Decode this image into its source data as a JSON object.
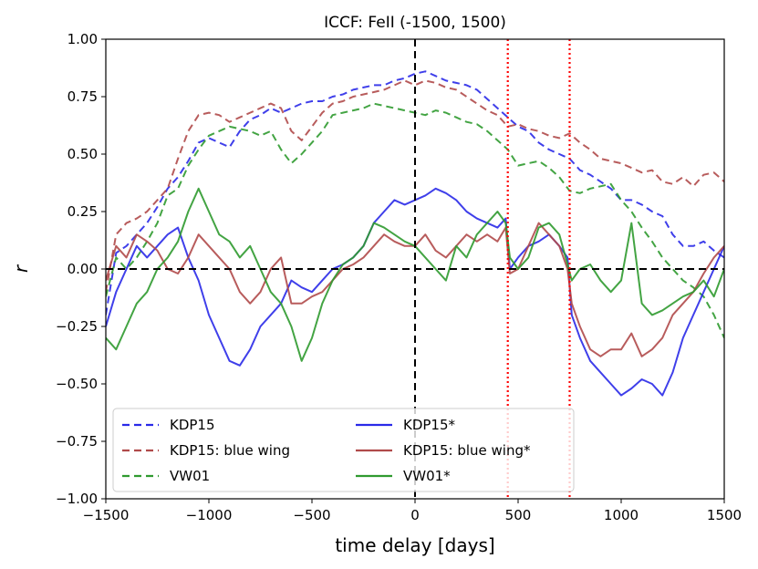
{
  "chart_data": {
    "type": "line",
    "title": "ICCF: FeII (-1500, 1500)",
    "xlabel": "time delay [days]",
    "ylabel": "r",
    "xlim": [
      -1500,
      1500
    ],
    "ylim": [
      -1.0,
      1.0
    ],
    "x_ticks": [
      -1500,
      -1000,
      -500,
      0,
      500,
      1000,
      1500
    ],
    "x_tick_labels": [
      "−1500",
      "−1000",
      "−500",
      "0",
      "500",
      "1000",
      "1500"
    ],
    "y_ticks": [
      -1.0,
      -0.75,
      -0.5,
      -0.25,
      0.0,
      0.25,
      0.5,
      0.75,
      1.0
    ],
    "y_tick_labels": [
      "−1.00",
      "−0.75",
      "−0.50",
      "−0.25",
      "0.00",
      "0.25",
      "0.50",
      "0.75",
      "1.00"
    ],
    "grid": false,
    "legend_position": "lower-left",
    "reference_lines": [
      {
        "orientation": "horizontal",
        "value": 0,
        "color": "#000000",
        "style": "dashed"
      },
      {
        "orientation": "vertical",
        "value": 0,
        "color": "#000000",
        "style": "dashed"
      },
      {
        "orientation": "vertical",
        "value": 450,
        "color": "#ff0000",
        "style": "dotted"
      },
      {
        "orientation": "vertical",
        "value": 750,
        "color": "#ff0000",
        "style": "dotted"
      }
    ],
    "series": [
      {
        "name": "KDP15",
        "color": "#2a2ae8",
        "style": "dashed",
        "x": [
          -1500,
          -1450,
          -1400,
          -1350,
          -1300,
          -1250,
          -1200,
          -1150,
          -1100,
          -1050,
          -1000,
          -950,
          -900,
          -850,
          -800,
          -750,
          -700,
          -650,
          -600,
          -550,
          -500,
          -450,
          -400,
          -350,
          -300,
          -250,
          -200,
          -150,
          -100,
          -50,
          0,
          50,
          100,
          150,
          200,
          250,
          300,
          350,
          400,
          450,
          500,
          550,
          600,
          650,
          700,
          750,
          800,
          850,
          900,
          950,
          1000,
          1050,
          1100,
          1150,
          1200,
          1250,
          1300,
          1350,
          1400,
          1450,
          1500
        ],
        "y": [
          -0.2,
          0.07,
          0.1,
          0.15,
          0.2,
          0.27,
          0.35,
          0.4,
          0.47,
          0.55,
          0.57,
          0.55,
          0.53,
          0.6,
          0.65,
          0.67,
          0.7,
          0.68,
          0.7,
          0.72,
          0.73,
          0.73,
          0.75,
          0.76,
          0.78,
          0.79,
          0.8,
          0.8,
          0.82,
          0.83,
          0.85,
          0.86,
          0.84,
          0.82,
          0.81,
          0.8,
          0.78,
          0.74,
          0.7,
          0.66,
          0.62,
          0.6,
          0.55,
          0.52,
          0.5,
          0.48,
          0.43,
          0.41,
          0.38,
          0.35,
          0.3,
          0.3,
          0.28,
          0.25,
          0.23,
          0.15,
          0.1,
          0.1,
          0.12,
          0.08,
          0.05
        ]
      },
      {
        "name": "KDP15: blue wing",
        "color": "#b04a4a",
        "style": "dashed",
        "x": [
          -1500,
          -1450,
          -1400,
          -1350,
          -1300,
          -1250,
          -1200,
          -1150,
          -1100,
          -1050,
          -1000,
          -950,
          -900,
          -850,
          -800,
          -750,
          -700,
          -650,
          -600,
          -550,
          -500,
          -450,
          -400,
          -350,
          -300,
          -250,
          -200,
          -150,
          -100,
          -50,
          0,
          50,
          100,
          150,
          200,
          250,
          300,
          350,
          400,
          450,
          500,
          550,
          600,
          650,
          700,
          750,
          800,
          850,
          900,
          950,
          1000,
          1050,
          1100,
          1150,
          1200,
          1250,
          1300,
          1350,
          1400,
          1450,
          1500
        ],
        "y": [
          -0.1,
          0.15,
          0.2,
          0.22,
          0.25,
          0.3,
          0.35,
          0.48,
          0.6,
          0.67,
          0.68,
          0.67,
          0.64,
          0.66,
          0.68,
          0.7,
          0.72,
          0.7,
          0.6,
          0.56,
          0.62,
          0.68,
          0.72,
          0.73,
          0.75,
          0.76,
          0.77,
          0.78,
          0.8,
          0.82,
          0.8,
          0.82,
          0.81,
          0.79,
          0.78,
          0.75,
          0.72,
          0.69,
          0.67,
          0.62,
          0.63,
          0.61,
          0.6,
          0.58,
          0.57,
          0.59,
          0.55,
          0.52,
          0.48,
          0.47,
          0.46,
          0.44,
          0.42,
          0.43,
          0.38,
          0.37,
          0.4,
          0.36,
          0.41,
          0.42,
          0.38
        ]
      },
      {
        "name": "VW01",
        "color": "#2f9a2f",
        "style": "dashed",
        "x": [
          -1500,
          -1450,
          -1400,
          -1350,
          -1300,
          -1250,
          -1200,
          -1150,
          -1100,
          -1050,
          -1000,
          -950,
          -900,
          -850,
          -800,
          -750,
          -700,
          -650,
          -600,
          -550,
          -500,
          -450,
          -400,
          -350,
          -300,
          -250,
          -200,
          -150,
          -100,
          -50,
          0,
          50,
          100,
          150,
          200,
          250,
          300,
          350,
          400,
          450,
          500,
          550,
          600,
          650,
          700,
          750,
          800,
          850,
          900,
          950,
          1000,
          1050,
          1100,
          1150,
          1200,
          1250,
          1300,
          1350,
          1400,
          1450,
          1500
        ],
        "y": [
          -0.12,
          0.05,
          0.0,
          0.05,
          0.12,
          0.2,
          0.32,
          0.35,
          0.45,
          0.52,
          0.58,
          0.6,
          0.62,
          0.61,
          0.6,
          0.58,
          0.6,
          0.52,
          0.46,
          0.5,
          0.55,
          0.6,
          0.67,
          0.68,
          0.69,
          0.7,
          0.72,
          0.71,
          0.7,
          0.69,
          0.68,
          0.67,
          0.69,
          0.68,
          0.66,
          0.64,
          0.63,
          0.6,
          0.56,
          0.52,
          0.45,
          0.46,
          0.47,
          0.44,
          0.4,
          0.34,
          0.33,
          0.35,
          0.36,
          0.37,
          0.3,
          0.25,
          0.18,
          0.12,
          0.05,
          0.0,
          -0.05,
          -0.08,
          -0.12,
          -0.2,
          -0.3
        ]
      },
      {
        "name": "KDP15*",
        "color": "#2a2ae8",
        "style": "solid",
        "x": [
          -1500,
          -1450,
          -1400,
          -1350,
          -1300,
          -1250,
          -1200,
          -1150,
          -1100,
          -1050,
          -1000,
          -950,
          -900,
          -850,
          -800,
          -750,
          -700,
          -650,
          -600,
          -550,
          -500,
          -450,
          -400,
          -350,
          -300,
          -250,
          -200,
          -150,
          -100,
          -50,
          0,
          50,
          100,
          150,
          200,
          250,
          300,
          350,
          400,
          440,
          460,
          500,
          550,
          600,
          650,
          700,
          740,
          760,
          800,
          850,
          900,
          950,
          1000,
          1050,
          1100,
          1150,
          1200,
          1250,
          1300,
          1350,
          1400,
          1450,
          1500
        ],
        "y": [
          -0.25,
          -0.1,
          0.0,
          0.1,
          0.05,
          0.1,
          0.15,
          0.18,
          0.05,
          -0.05,
          -0.2,
          -0.3,
          -0.4,
          -0.42,
          -0.35,
          -0.25,
          -0.2,
          -0.15,
          -0.05,
          -0.08,
          -0.1,
          -0.05,
          0.0,
          0.02,
          0.05,
          0.1,
          0.2,
          0.25,
          0.3,
          0.28,
          0.3,
          0.32,
          0.35,
          0.33,
          0.3,
          0.25,
          0.22,
          0.2,
          0.18,
          0.22,
          0.0,
          0.05,
          0.1,
          0.12,
          0.15,
          0.1,
          0.05,
          -0.2,
          -0.3,
          -0.4,
          -0.45,
          -0.5,
          -0.55,
          -0.52,
          -0.48,
          -0.5,
          -0.55,
          -0.45,
          -0.3,
          -0.2,
          -0.1,
          0.0,
          0.1
        ]
      },
      {
        "name": "KDP15: blue wing*",
        "color": "#b04a4a",
        "style": "solid",
        "x": [
          -1500,
          -1450,
          -1400,
          -1350,
          -1300,
          -1250,
          -1200,
          -1150,
          -1100,
          -1050,
          -1000,
          -950,
          -900,
          -850,
          -800,
          -750,
          -700,
          -650,
          -600,
          -550,
          -500,
          -450,
          -400,
          -350,
          -300,
          -250,
          -200,
          -150,
          -100,
          -50,
          0,
          50,
          100,
          150,
          200,
          250,
          300,
          350,
          400,
          440,
          460,
          500,
          550,
          600,
          650,
          700,
          740,
          760,
          800,
          850,
          900,
          950,
          1000,
          1050,
          1100,
          1150,
          1200,
          1250,
          1300,
          1350,
          1400,
          1450,
          1500
        ],
        "y": [
          -0.05,
          0.1,
          0.05,
          0.15,
          0.12,
          0.08,
          0.0,
          -0.02,
          0.05,
          0.15,
          0.1,
          0.05,
          0.0,
          -0.1,
          -0.15,
          -0.1,
          0.0,
          0.05,
          -0.15,
          -0.15,
          -0.12,
          -0.1,
          -0.05,
          0.0,
          0.02,
          0.05,
          0.1,
          0.15,
          0.12,
          0.1,
          0.1,
          0.15,
          0.08,
          0.05,
          0.1,
          0.15,
          0.12,
          0.15,
          0.12,
          0.18,
          -0.02,
          0.0,
          0.1,
          0.2,
          0.15,
          0.1,
          0.0,
          -0.15,
          -0.25,
          -0.35,
          -0.38,
          -0.35,
          -0.35,
          -0.28,
          -0.38,
          -0.35,
          -0.3,
          -0.2,
          -0.15,
          -0.1,
          -0.02,
          0.05,
          0.1
        ]
      },
      {
        "name": "VW01*",
        "color": "#2f9a2f",
        "style": "solid",
        "x": [
          -1500,
          -1450,
          -1400,
          -1350,
          -1300,
          -1250,
          -1200,
          -1150,
          -1100,
          -1050,
          -1000,
          -950,
          -900,
          -850,
          -800,
          -750,
          -700,
          -650,
          -600,
          -550,
          -500,
          -450,
          -400,
          -350,
          -300,
          -250,
          -200,
          -150,
          -100,
          -50,
          0,
          50,
          100,
          150,
          200,
          250,
          300,
          350,
          400,
          440,
          460,
          500,
          550,
          600,
          650,
          700,
          740,
          760,
          800,
          850,
          900,
          950,
          1000,
          1050,
          1100,
          1150,
          1200,
          1250,
          1300,
          1350,
          1400,
          1450,
          1500
        ],
        "y": [
          -0.3,
          -0.35,
          -0.25,
          -0.15,
          -0.1,
          0.0,
          0.05,
          0.12,
          0.25,
          0.35,
          0.25,
          0.15,
          0.12,
          0.05,
          0.1,
          0.0,
          -0.1,
          -0.15,
          -0.25,
          -0.4,
          -0.3,
          -0.15,
          -0.05,
          0.02,
          0.05,
          0.1,
          0.2,
          0.18,
          0.15,
          0.12,
          0.1,
          0.05,
          0.0,
          -0.05,
          0.1,
          0.05,
          0.15,
          0.2,
          0.25,
          0.2,
          0.05,
          0.0,
          0.05,
          0.18,
          0.2,
          0.15,
          0.02,
          -0.05,
          0.0,
          0.02,
          -0.05,
          -0.1,
          -0.05,
          0.2,
          -0.15,
          -0.2,
          -0.18,
          -0.15,
          -0.12,
          -0.1,
          -0.05,
          -0.12,
          0.0
        ]
      }
    ]
  }
}
